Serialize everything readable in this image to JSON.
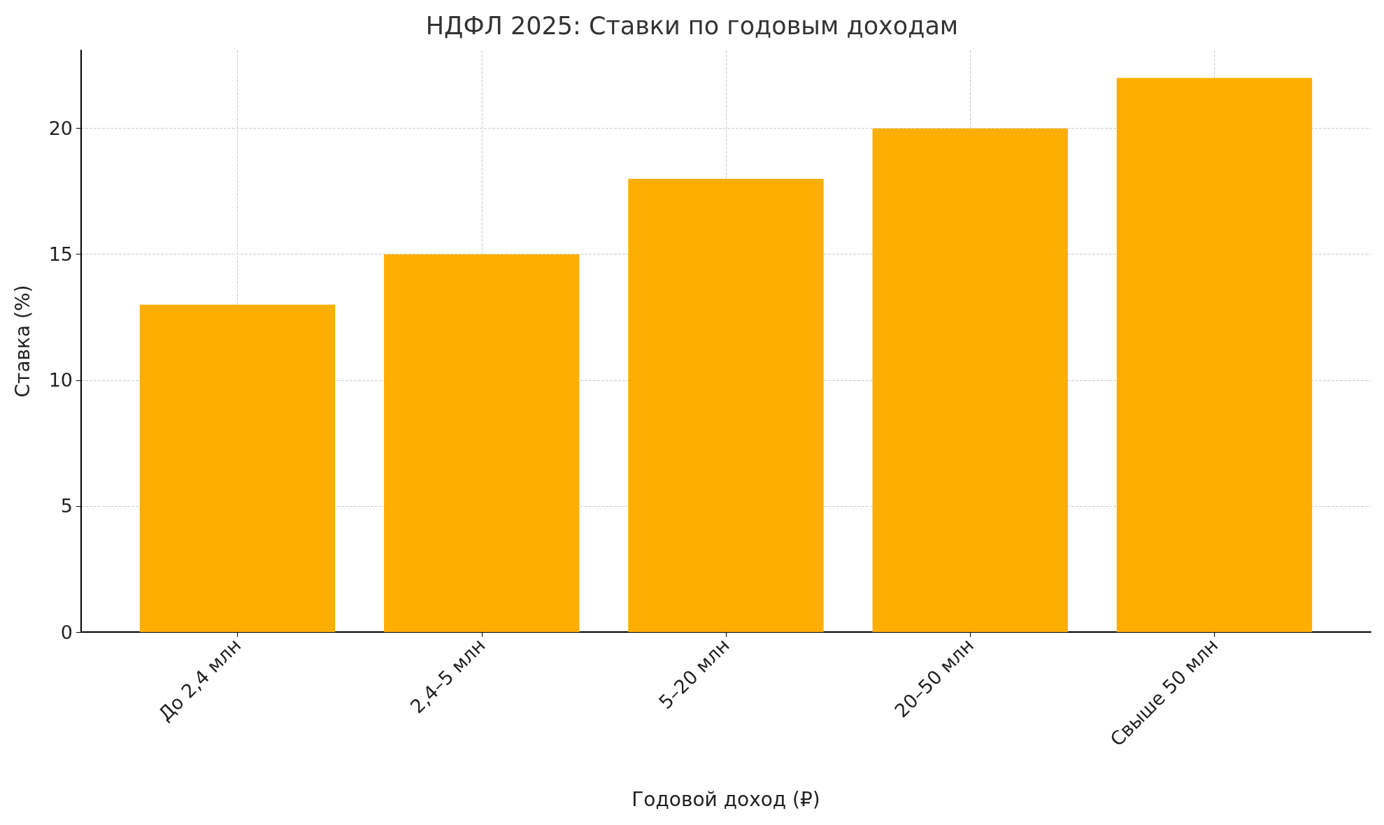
{
  "chart_data": {
    "type": "bar",
    "title": "НДФЛ 2025: Ставки по годовым доходам",
    "xlabel": "Годовой доход (₽)",
    "ylabel": "Ставка (%)",
    "categories": [
      "До 2,4 млн",
      "2,4–5 млн",
      "5–20 млн",
      "20–50 млн",
      "Свыше 50 млн"
    ],
    "values": [
      13,
      15,
      18,
      20,
      22
    ],
    "color": "#fcaf00",
    "ylim": [
      0,
      23.1
    ],
    "yticks": [
      0,
      5,
      10,
      15,
      20
    ],
    "grid": true
  }
}
